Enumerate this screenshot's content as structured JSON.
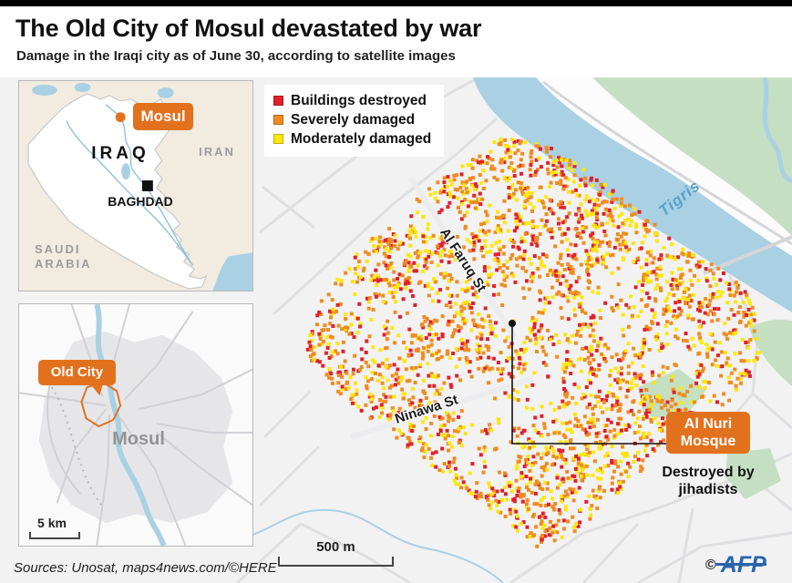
{
  "header": {
    "title": "The Old City of Mosul devastated by war",
    "subtitle": "Damage in the Iraqi city as of June 30, according to satellite images"
  },
  "legend": {
    "items": [
      {
        "label": "Buildings destroyed",
        "color": "#e1202b"
      },
      {
        "label": "Severely damaged",
        "color": "#f08c1e"
      },
      {
        "label": "Moderately damaged",
        "color": "#ffe70a"
      }
    ]
  },
  "iraq_inset": {
    "mosul_label": "Mosul",
    "country_label": "IRAQ",
    "capital_label": "BAGHDAD",
    "neighbor_east": "IRAN",
    "neighbor_south": "SAUDI\nARABIA"
  },
  "city_inset": {
    "old_city_label": "Old City",
    "city_label": "Mosul",
    "scale_label": "5 km"
  },
  "main_map": {
    "river_label": "Tigris",
    "street_1": "Al Faruq St",
    "street_2": "Ninawa St",
    "mosque_label": "Al Nuri\nMosque",
    "mosque_caption": "Destroyed by\njihadists",
    "scale_label": "500 m",
    "damage_dots": {
      "count": 2800,
      "weights": [
        0.22,
        0.46,
        0.32
      ]
    }
  },
  "footer": {
    "sources": "Sources: Unosat, maps4news.com/©HERE",
    "copyright_symbol": "©",
    "agency": "AFP"
  },
  "colors": {
    "accent_orange": "#e2711d",
    "river_blue": "#a9d0e3",
    "park_green": "#c5dfc3",
    "afp_blue": "#2a64ad"
  }
}
